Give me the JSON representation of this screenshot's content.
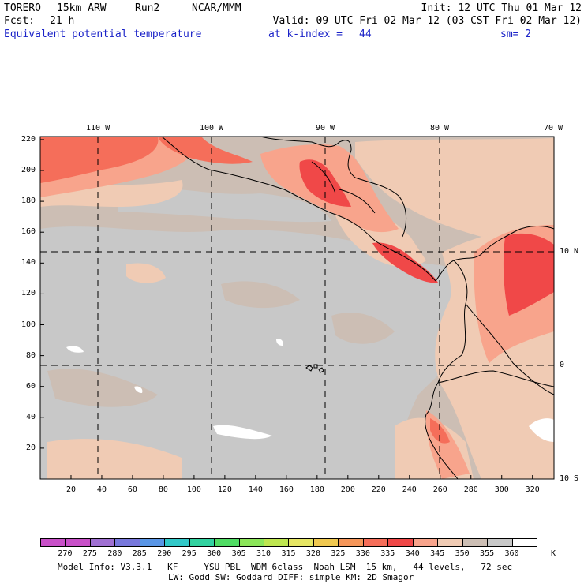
{
  "header": {
    "model": "TORERO",
    "resolution": "15km ARW",
    "run": "Run2",
    "agency": "NCAR/MMM",
    "init": "Init: 12 UTC Thu 01 Mar 12",
    "fcst_label": "Fcst:",
    "fcst_value": "21 h",
    "valid": "Valid: 09 UTC Fri 02 Mar 12 (03 CST Fri 02 Mar 12)",
    "field": "Equivalent potential temperature",
    "level": "at k-index =",
    "level_value": "44",
    "smoothing": "sm= 2"
  },
  "map": {
    "lon_labels": [
      "110 W",
      "100 W",
      "90 W",
      "80 W",
      "70 W"
    ],
    "lat_labels": [
      "10 N",
      "0",
      "10 S"
    ],
    "y_grid_labels": [
      "220",
      "200",
      "180",
      "160",
      "140",
      "120",
      "100",
      "80",
      "60",
      "40",
      "20"
    ],
    "x_grid_labels": [
      "20",
      "40",
      "60",
      "80",
      "100",
      "120",
      "140",
      "160",
      "180",
      "200",
      "220",
      "240",
      "260",
      "280",
      "300",
      "320"
    ],
    "x_range": [
      0,
      334
    ],
    "y_range": [
      0,
      222
    ],
    "colors": {
      "grey": "#c8c8c8",
      "tan": "#ccbeb4",
      "peach": "#f0cbb4",
      "salmon": "#f8a48c",
      "red_light": "#f56e5a",
      "red": "#f04848",
      "white": "#ffffff",
      "coast": "#000000"
    }
  },
  "colorbar": {
    "unit": "K",
    "labels": [
      "270",
      "275",
      "280",
      "285",
      "290",
      "295",
      "300",
      "305",
      "310",
      "315",
      "320",
      "325",
      "330",
      "335",
      "340",
      "345",
      "350",
      "355",
      "360"
    ],
    "colors": [
      "#c850c8",
      "#a070d2",
      "#7878dc",
      "#5a96e6",
      "#32c8c8",
      "#32d2a0",
      "#50dc64",
      "#8ce65a",
      "#bee650",
      "#e6e664",
      "#f0c850",
      "#f5965a",
      "#f56e5a",
      "#f04848",
      "#f8a48c",
      "#f0cbb4",
      "#ccbeb4",
      "#c8c8c8",
      "#ffffff"
    ]
  },
  "footer": {
    "line1": "Model Info: V3.3.1   KF     YSU PBL  WDM 6class  Noah LSM  15 km,   44 levels,   72 sec",
    "line2": "LW: Godd SW: Goddard DIFF: simple KM: 2D Smagor"
  }
}
